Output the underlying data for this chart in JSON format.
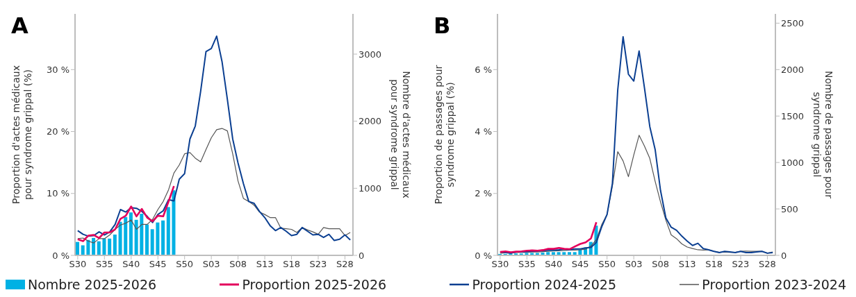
{
  "chart_data": [
    {
      "type": "line",
      "title": "A",
      "ylabel": "Proportion d'actes médicaux\npour syndrome grippal (%)",
      "y2label": "Nombre d'actes médicaux\npour syndrome grippal",
      "categories": [
        "S30",
        null,
        null,
        null,
        null,
        "S35",
        null,
        null,
        null,
        null,
        "S40",
        null,
        null,
        null,
        null,
        "S45",
        null,
        null,
        null,
        null,
        "S50",
        null,
        null,
        null,
        null,
        "S03",
        null,
        null,
        null,
        null,
        "S08",
        null,
        null,
        null,
        null,
        "S13",
        null,
        null,
        null,
        null,
        "S18",
        null,
        null,
        null,
        null,
        "S23",
        null,
        null,
        null,
        null,
        "S28",
        null
      ],
      "series": [
        {
          "name": "Nombre 2025-2026",
          "type": "bar",
          "axis": "y2",
          "color": "#00b1e4",
          "values": [
            200,
            150,
            230,
            260,
            210,
            250,
            250,
            310,
            500,
            570,
            640,
            530,
            620,
            460,
            390,
            490,
            520,
            720,
            970,
            null,
            null,
            null,
            null,
            null,
            null,
            null,
            null,
            null,
            null,
            null,
            null,
            null,
            null,
            null,
            null,
            null,
            null,
            null,
            null,
            null,
            null,
            null,
            null,
            null,
            null,
            null,
            null,
            null,
            null,
            null,
            null,
            null
          ]
        },
        {
          "name": "Proportion 2025-2026",
          "color": "#e3005b",
          "values": [
            2.6,
            2.3,
            3.2,
            3.3,
            2.8,
            3.7,
            3.7,
            4.2,
            5.9,
            6.4,
            7.9,
            6.3,
            7.5,
            6.1,
            5.5,
            6.4,
            6.3,
            8.7,
            11.2,
            null,
            null,
            null,
            null,
            null,
            null,
            null,
            null,
            null,
            null,
            null,
            null,
            null,
            null,
            null,
            null,
            null,
            null,
            null,
            null,
            null,
            null,
            null,
            null,
            null,
            null,
            null,
            null,
            null,
            null,
            null,
            null,
            null
          ]
        },
        {
          "name": "Proportion 2024-2025",
          "color": "#0b3f91",
          "values": [
            4.0,
            3.4,
            3.1,
            3.2,
            3.8,
            3.3,
            3.8,
            5.0,
            7.4,
            7.0,
            7.7,
            7.6,
            7.1,
            6.3,
            5.3,
            6.6,
            7.2,
            9.0,
            8.8,
            12.3,
            13.2,
            18.8,
            20.9,
            26.5,
            32.9,
            33.4,
            35.4,
            31.3,
            25.2,
            18.8,
            14.9,
            11.6,
            8.7,
            8.4,
            7.1,
            6.1,
            4.8,
            4.0,
            4.5,
            3.9,
            3.2,
            3.4,
            4.5,
            3.9,
            3.3,
            3.4,
            2.9,
            3.4,
            2.4,
            2.6,
            3.3,
            2.5
          ]
        },
        {
          "name": "Proportion 2023-2024",
          "color": "#555555",
          "values": [
            2.7,
            2.8,
            2.3,
            2.0,
            2.7,
            2.7,
            3.3,
            4.2,
            4.9,
            5.2,
            5.7,
            4.2,
            5.0,
            5.0,
            5.8,
            7.4,
            8.7,
            10.6,
            13.3,
            14.6,
            16.4,
            16.6,
            15.7,
            15.1,
            17.1,
            19.0,
            20.3,
            20.5,
            20.1,
            16.4,
            12.0,
            9.2,
            8.7,
            8.1,
            7.0,
            6.6,
            6.1,
            6.1,
            4.4,
            4.3,
            4.2,
            3.7,
            4.5,
            4.1,
            3.8,
            3.4,
            4.5,
            4.3,
            4.3,
            4.3,
            3.2,
            3.7
          ]
        }
      ],
      "ylim": [
        0,
        39
      ],
      "yticks": [
        {
          "value": 0,
          "label": "0 %"
        },
        {
          "value": 10,
          "label": "10 %"
        },
        {
          "value": 20,
          "label": "20 %"
        },
        {
          "value": 30,
          "label": "30 %"
        }
      ],
      "y2lim": [
        0,
        3600
      ],
      "y2ticks": [
        0,
        1000,
        2000,
        3000
      ],
      "legend": "bottom"
    },
    {
      "type": "line",
      "title": "B",
      "ylabel": "Proportion de passages pour\nsyndrome grippal (%)",
      "y2label": "Nombre de passages pour\nsyndrome grippal",
      "categories": [
        "S30",
        null,
        null,
        null,
        null,
        "S35",
        null,
        null,
        null,
        null,
        "S40",
        null,
        null,
        null,
        null,
        "S45",
        null,
        null,
        null,
        null,
        "S50",
        null,
        null,
        null,
        null,
        "S03",
        null,
        null,
        null,
        null,
        "S08",
        null,
        null,
        null,
        null,
        "S13",
        null,
        null,
        null,
        null,
        "S18",
        null,
        null,
        null,
        null,
        "S23",
        null,
        null,
        null,
        null,
        "S28",
        null
      ],
      "series": [
        {
          "type": "bar",
          "axis": "y2",
          "color": "#00b1e4",
          "values": [
            15,
            15,
            20,
            20,
            20,
            25,
            25,
            25,
            30,
            35,
            35,
            35,
            35,
            35,
            35,
            60,
            85,
            145,
            320,
            null,
            null,
            null,
            null,
            null,
            null,
            null,
            null,
            null,
            null,
            null,
            null,
            null,
            null,
            null,
            null,
            null,
            null,
            null,
            null,
            null,
            null,
            null,
            null,
            null,
            null,
            null,
            null,
            null,
            null,
            null,
            null,
            null
          ]
        },
        {
          "color": "#e3005b",
          "values": [
            0.11,
            0.13,
            0.1,
            0.12,
            0.13,
            0.15,
            0.16,
            0.15,
            0.17,
            0.21,
            0.21,
            0.24,
            0.21,
            0.2,
            0.29,
            0.37,
            0.42,
            0.55,
            1.07,
            null,
            null,
            null,
            null,
            null,
            null,
            null,
            null,
            null,
            null,
            null,
            null,
            null,
            null,
            null,
            null,
            null,
            null,
            null,
            null,
            null,
            null,
            null,
            null,
            null,
            null,
            null,
            null,
            null,
            null,
            null,
            null,
            null
          ]
        },
        {
          "color": "#0b3f91",
          "values": [
            0.11,
            0.09,
            0.07,
            0.11,
            0.11,
            0.12,
            0.13,
            0.14,
            0.15,
            0.17,
            0.17,
            0.18,
            0.2,
            0.18,
            0.21,
            0.21,
            0.24,
            0.26,
            0.42,
            0.92,
            1.32,
            2.32,
            5.34,
            7.06,
            5.85,
            5.63,
            6.6,
            5.41,
            4.16,
            3.42,
            2.1,
            1.21,
            0.91,
            0.81,
            0.62,
            0.46,
            0.32,
            0.39,
            0.22,
            0.18,
            0.13,
            0.09,
            0.13,
            0.11,
            0.09,
            0.13,
            0.09,
            0.09,
            0.11,
            0.13,
            0.07,
            0.09
          ]
        },
        {
          "color": "#555555",
          "values": [
            0.07,
            0.08,
            0.08,
            0.09,
            0.1,
            0.1,
            0.11,
            0.11,
            0.12,
            0.13,
            0.14,
            0.15,
            0.16,
            0.17,
            0.17,
            0.18,
            0.2,
            0.3,
            0.51,
            0.99,
            1.32,
            2.24,
            3.35,
            3.05,
            2.54,
            3.24,
            3.88,
            3.53,
            3.13,
            2.39,
            1.73,
            1.14,
            0.66,
            0.54,
            0.37,
            0.27,
            0.22,
            0.18,
            0.17,
            0.18,
            0.13,
            0.1,
            0.11,
            0.1,
            0.1,
            0.13,
            0.14,
            0.13,
            0.13,
            0.13,
            0.07,
            0.11
          ]
        }
      ],
      "ylim": [
        0,
        7.8
      ],
      "yticks": [
        {
          "value": 0,
          "label": "0 %"
        },
        {
          "value": 2,
          "label": "2 %"
        },
        {
          "value": 4,
          "label": "4 %"
        },
        {
          "value": 6,
          "label": "6 %"
        }
      ],
      "y2lim": [
        0,
        2600
      ],
      "y2ticks": [
        0,
        500,
        1000,
        1500,
        2000,
        2500
      ]
    }
  ]
}
